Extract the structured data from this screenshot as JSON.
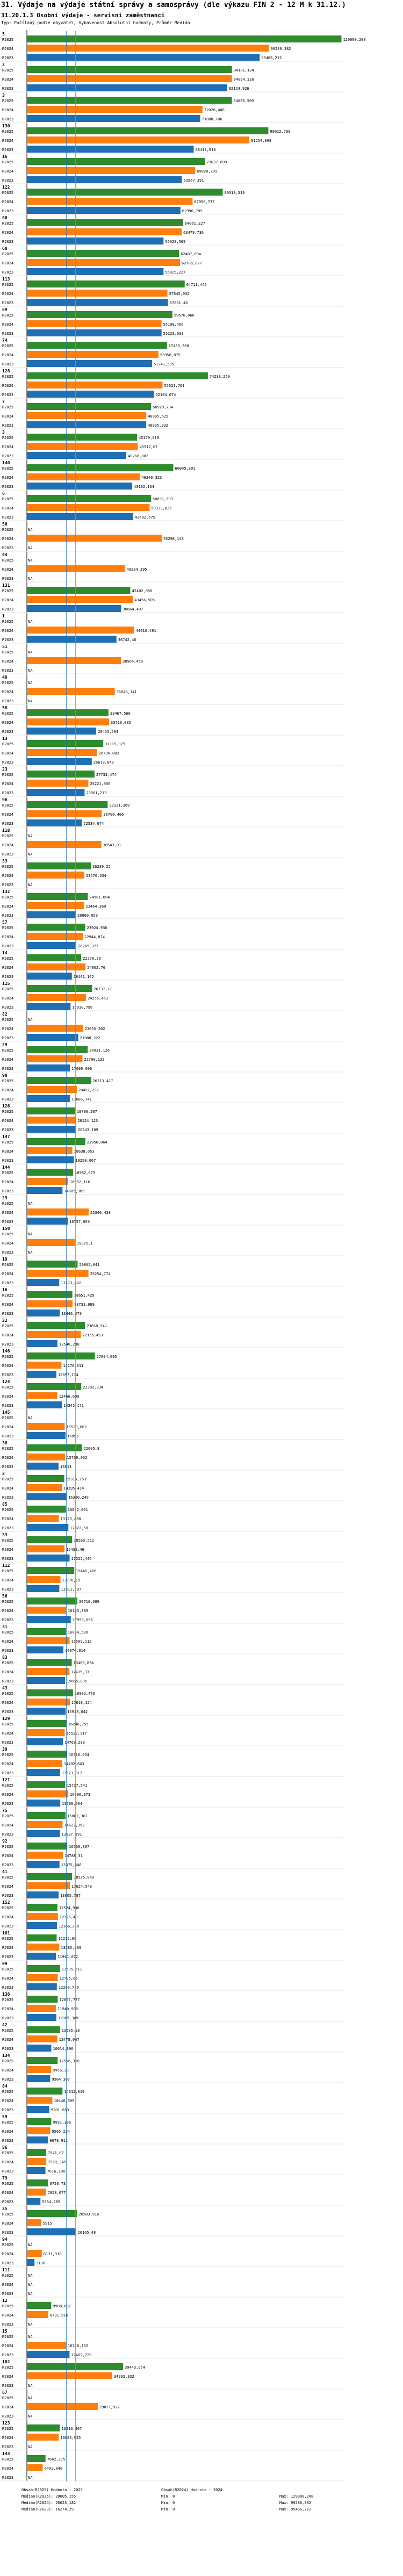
{
  "page_title": "31. Výdaje na výdaje státní správy a samosprávy (dle výkazu FIN 2 - 12 M k 31.12.)",
  "chart_data": {
    "type": "bar",
    "orientation": "horizontal",
    "title": "31.20.1.3 Osobní výdaje - servisní zaměstnanci",
    "subtitle": "Typ: Počítaný podle obyvatel, Vybavenost Absolutní hodnoty, Průměr Medián",
    "xlim": [
      0,
      130000
    ],
    "series": [
      {
        "name": "R2025",
        "color": "#2e8b2e"
      },
      {
        "name": "R2024",
        "color": "#ff7f0e"
      },
      {
        "name": "R2023",
        "color": "#1f6fb4"
      }
    ],
    "groups": [
      {
        "label": "5",
        "values": [
          129000.208,
          99286.382,
          95466.212
        ]
      },
      {
        "label": "2",
        "values": [
          84101.124,
          84094.326,
          82124.926
        ]
      },
      {
        "label": "3",
        "values": [
          84050.569,
          72020.488,
          71088.706
        ]
      },
      {
        "label": "130",
        "values": [
          99022.709,
          91254.098,
          68413.919
        ]
      },
      {
        "label": "16",
        "values": [
          73037.699,
          69028.799,
          63567.391
        ]
      },
      {
        "label": "122",
        "values": [
          80313.319,
          67950.737,
          62990.795
        ]
      },
      {
        "label": "80",
        "values": [
          64061.227,
          63479.736,
          56029.569
        ]
      },
      {
        "label": "60",
        "values": [
          62407.094,
          62786.027,
          56025.227
        ]
      },
      {
        "label": "113",
        "values": [
          64711.445,
          57645.032,
          57881.46
        ]
      },
      {
        "label": "69",
        "values": [
          59676.066,
          55198.466,
          55223.033
        ]
      },
      {
        "label": "74",
        "values": [
          57463.368,
          53950.875,
          51341.595
        ]
      },
      {
        "label": "128",
        "values": [
          74233.259,
          55621.761,
          52104.074
        ]
      },
      {
        "label": "7",
        "values": [
          50929.784,
          48965.625,
          48935.332
        ]
      },
      {
        "label": "3",
        "values": [
          45179.918,
          45512.02,
          40768.802
        ]
      },
      {
        "label": "140",
        "values": [
          60045.391,
          46340.323,
          43192.134
        ]
      },
      {
        "label": "6",
        "values": [
          50891.599,
          50333.825,
          43602.575
        ]
      },
      {
        "label": "50",
        "values": [
          null,
          55298.143,
          null
        ]
      },
      {
        "label": "44",
        "values": [
          null,
          40234.395,
          null
        ]
      },
      {
        "label": "131",
        "values": [
          42402.956,
          43456.505,
          38664.497
        ]
      },
      {
        "label": "1",
        "values": [
          null,
          44010.491,
          36742.46
        ]
      },
      {
        "label": "51",
        "values": [
          null,
          38564.458,
          null
        ]
      },
      {
        "label": "48",
        "values": [
          null,
          36048.141,
          null
        ]
      },
      {
        "label": "58",
        "values": [
          33467.566,
          33716.085,
          28455.594
        ]
      },
      {
        "label": "13",
        "values": [
          31315.075,
          28796.882,
          26619.848
        ]
      },
      {
        "label": "23",
        "values": [
          27733.474,
          25221.036,
          23661.213
        ]
      },
      {
        "label": "96",
        "values": [
          33121.369,
          30700.406,
          22534.674
        ]
      },
      {
        "label": "118",
        "values": [
          null,
          30543.91,
          null
        ]
      },
      {
        "label": "33",
        "values": [
          26239.25,
          23570.334,
          null
        ]
      },
      {
        "label": "132",
        "values": [
          24981.694,
          23464.369,
          20060.059
        ]
      },
      {
        "label": "57",
        "values": [
          23924.936,
          22944.874,
          20265.372
        ]
      },
      {
        "label": "14",
        "values": [
          22270.26,
          24062.76,
          18461.162
        ]
      },
      {
        "label": "115",
        "values": [
          26737.27,
          24255.453,
          17910.796
        ]
      },
      {
        "label": "82",
        "values": [
          null,
          23055.302,
          21080.222
        ]
      },
      {
        "label": "29",
        "values": [
          24931.126,
          22790.132,
          17690.096
        ]
      },
      {
        "label": "90",
        "values": [
          26313.417,
          20457.292,
          17606.741
        ]
      },
      {
        "label": "126",
        "values": [
          19796.207,
          20124.123,
          20243.109
        ]
      },
      {
        "label": "147",
        "values": [
          23956.064,
          18638.053,
          19250.067
        ]
      },
      {
        "label": "144",
        "values": [
          18982.073,
          16952.116,
          14605.369
        ]
      },
      {
        "label": "29",
        "values": [
          null,
          25346.438,
          16757.059
        ]
      },
      {
        "label": "150",
        "values": [
          null,
          19825.1,
          null
        ]
      },
      {
        "label": "19",
        "values": [
          20802.041,
          25254.774,
          13273.402
        ]
      },
      {
        "label": "16",
        "values": [
          18651.429,
          18731.989,
          13446.279
        ]
      },
      {
        "label": "32",
        "values": [
          23858.941,
          22155.453,
          12540.238
        ]
      },
      {
        "label": "146",
        "values": [
          27894.695,
          14176.311,
          12097.114
        ]
      },
      {
        "label": "124",
        "values": [
          22302.934,
          12466.699,
          14345.171
        ]
      },
      {
        "label": "145",
        "values": [
          null,
          15520.062,
          15853.0
        ]
      },
      {
        "label": "38",
        "values": [
          22605.8,
          15709.062,
          13013.0
        ]
      },
      {
        "label": "3",
        "values": [
          15315.753,
          14395.414,
          16300.249
        ]
      },
      {
        "label": "85",
        "values": [
          16032.061,
          13123.438,
          17022.58
        ]
      },
      {
        "label": "33",
        "values": [
          18563.512,
          15432.46,
          17525.446
        ]
      },
      {
        "label": "112",
        "values": [
          19445.468,
          13776.19,
          13311.797
        ]
      },
      {
        "label": "56",
        "values": [
          20716.389,
          16125.389,
          17999.096
        ]
      },
      {
        "label": "31",
        "values": [
          16064.509,
          17509.112,
          14974.014
        ]
      },
      {
        "label": "83",
        "values": [
          18406.834,
          17435.33,
          15665.895
        ]
      },
      {
        "label": "43",
        "values": [
          18902.473,
          17618.124,
          15913.042
        ]
      },
      {
        "label": "129",
        "values": [
          16246.755,
          15523.117,
          14769.283
        ]
      },
      {
        "label": "39",
        "values": [
          16516.634,
          14492.643,
          13623.017
        ]
      },
      {
        "label": "121",
        "values": [
          15737.541,
          16996.373,
          13700.664
        ]
      },
      {
        "label": "75",
        "values": [
          15882.367,
          14622.392,
          13537.391
        ]
      },
      {
        "label": "92",
        "values": [
          16569.807,
          14788.31,
          13375.646
        ]
      },
      {
        "label": "41",
        "values": [
          18525.049,
          17624.548,
          13005.787
        ]
      },
      {
        "label": "152",
        "values": [
          12524.936,
          12725.49,
          12366.228
        ]
      },
      {
        "label": "101",
        "values": [
          12215.09,
          13285.509,
          11941.072
        ]
      },
      {
        "label": "99",
        "values": [
          13605.611,
          12705.05,
          12290.719
        ]
      },
      {
        "label": "136",
        "values": [
          12657.777,
          11940.905,
          12085.349
        ]
      },
      {
        "label": "42",
        "values": [
          13595.93,
          12478.967,
          10014.396
        ]
      },
      {
        "label": "134",
        "values": [
          12596.316,
          9956.38,
          9564.307
        ]
      },
      {
        "label": "84",
        "values": [
          14612.019,
          10446.699,
          9201.653
        ]
      },
      {
        "label": "59",
        "values": [
          9991.106,
          9565.234,
          8678.911
        ]
      },
      {
        "label": "86",
        "values": [
          7941.07,
          7968.345,
          7616.108
        ]
      },
      {
        "label": "79",
        "values": [
          8726.73,
          7858.077,
          5564.205
        ]
      },
      {
        "label": "25",
        "values": [
          20583.916,
          5915.0,
          20165.48
        ]
      },
      {
        "label": "94",
        "values": [
          null,
          6131.918,
          3130.0
        ]
      },
      {
        "label": "111",
        "values": [
          null,
          null,
          null
        ]
      },
      {
        "label": "12",
        "values": [
          9988.087,
          8791.916,
          null
        ]
      },
      {
        "label": "15",
        "values": [
          null,
          16120.132,
          17487.729
        ]
      },
      {
        "label": "102",
        "values": [
          39443.954,
          34992.332,
          null
        ]
      },
      {
        "label": "67",
        "values": [
          null,
          29077.927,
          null
        ]
      },
      {
        "label": "123",
        "values": [
          13516.467,
          13085.925,
          null
        ]
      },
      {
        "label": "143",
        "values": [
          7642.175,
          6492.048,
          null
        ]
      }
    ],
    "reference_lines": [
      {
        "name": "Medián(R2025) Hodnota",
        "value": 20005.155,
        "color": "#2e8b2e"
      },
      {
        "name": "Medián(R2024) Hodnota",
        "value": 20023.182,
        "color": "#ff7f0e"
      },
      {
        "name": "Medián(R2023) Hodnota",
        "value": 16274.29,
        "color": "#1f6fb4"
      }
    ],
    "legend": {
      "col1": [
        "Obsah(R2025) Hodnota - 2025",
        "Medián(R2025): 20005,155",
        "Medián(R2024): 20023,182",
        "Medián(R2023): 16274,29"
      ],
      "col2": [
        "Obsah(R2024) Hodnota - 2024",
        "Min: 0",
        "Min: 0",
        "Min: 0"
      ],
      "col3": [
        "",
        "Max: 129000,208",
        "Max: 99286,382",
        "Max: 95466,212"
      ]
    },
    "missing_label": "NA"
  }
}
